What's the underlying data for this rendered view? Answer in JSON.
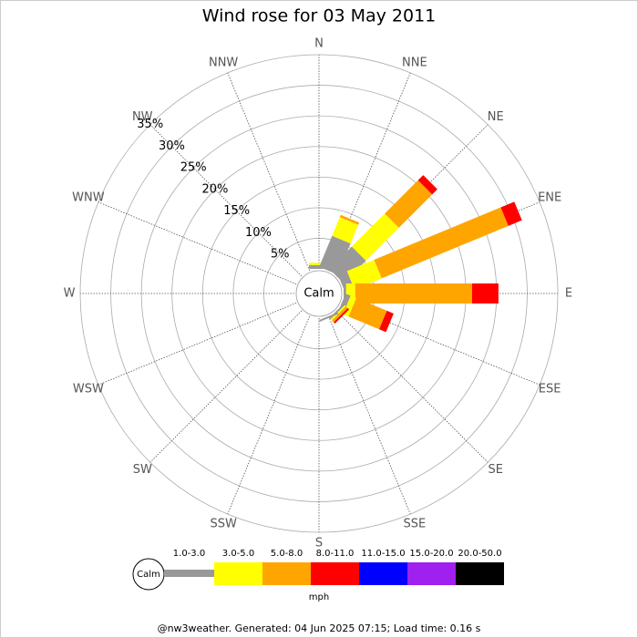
{
  "chart_data": {
    "type": "windrose",
    "title": "Wind rose for 03 May 2011",
    "categories": [
      "N",
      "NNE",
      "NE",
      "ENE",
      "E",
      "ESE",
      "SE",
      "SSE",
      "S",
      "SSW",
      "SW",
      "WSW",
      "W",
      "WNW",
      "NW",
      "NNW"
    ],
    "series": [
      {
        "name": "1.0-3.0",
        "color": "#999999",
        "values": [
          0.6,
          5.5,
          5.2,
          1.6,
          0.4,
          0.9,
          0.3,
          0.3,
          0,
          0,
          0,
          0,
          0,
          0,
          0,
          0
        ]
      },
      {
        "name": "3.0-5.0",
        "color": "#ffff00",
        "values": [
          0.4,
          3.3,
          7.6,
          4.8,
          1.5,
          1.0,
          0.3,
          0,
          0,
          0,
          0,
          0,
          0,
          0,
          0,
          0
        ]
      },
      {
        "name": "5.0-8.0",
        "color": "#ffa500",
        "values": [
          0,
          0.4,
          7.7,
          22.4,
          19.1,
          5.4,
          0.4,
          0,
          0,
          0,
          0,
          0,
          0,
          0,
          0,
          0
        ]
      },
      {
        "name": "8.0-11.0",
        "color": "#ff0000",
        "values": [
          0,
          0,
          1.2,
          2.4,
          4.3,
          1.2,
          0.3,
          0,
          0,
          0,
          0,
          0,
          0,
          0,
          0,
          0
        ]
      },
      {
        "name": "11.0-15.0",
        "color": "#0000ff",
        "values": [
          0,
          0,
          0,
          0,
          0,
          0,
          0,
          0,
          0,
          0,
          0,
          0,
          0,
          0,
          0,
          0
        ]
      },
      {
        "name": "15.0-20.0",
        "color": "#a020f0",
        "values": [
          0,
          0,
          0,
          0,
          0,
          0,
          0,
          0,
          0,
          0,
          0,
          0,
          0,
          0,
          0,
          0
        ]
      },
      {
        "name": "20.0-50.0",
        "color": "#000000",
        "values": [
          0,
          0,
          0,
          0,
          0,
          0,
          0,
          0,
          0,
          0,
          0,
          0,
          0,
          0,
          0,
          0
        ]
      }
    ],
    "rlim": [
      0,
      35
    ],
    "rticks": [
      {
        "value": 5,
        "label": "5%"
      },
      {
        "value": 10,
        "label": "10%"
      },
      {
        "value": 15,
        "label": "15%"
      },
      {
        "value": 20,
        "label": "20%"
      },
      {
        "value": 25,
        "label": "25%"
      },
      {
        "value": 30,
        "label": "30%"
      },
      {
        "value": 35,
        "label": "35%"
      }
    ],
    "center_label": "Calm",
    "legend_unit": "mph",
    "footer": "@nw3weather. Generated: 04 Jun 2025 07:15; Load time: 0.16 s"
  }
}
